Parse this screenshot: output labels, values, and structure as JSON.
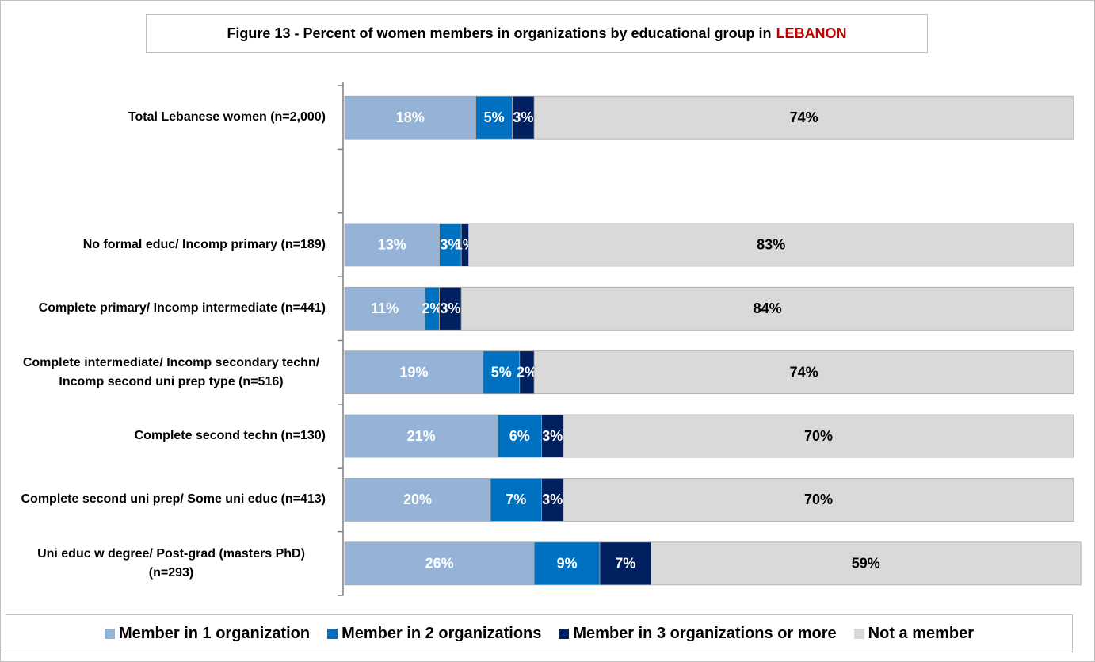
{
  "chart_data": {
    "type": "stacked_bar_horizontal",
    "title": "Figure 13 - Percent of women members in organizations by educational group in",
    "title_highlight": "LEBANON",
    "categories": [
      "Total Lebanese women (n=2,000)",
      null,
      "No formal educ/ Incomp primary (n=189)",
      "Complete primary/ Incomp intermediate (n=441)",
      "Complete intermediate/ Incomp secondary techn/ Incomp second uni prep type (n=516)",
      "Complete second techn (n=130)",
      "Complete second uni prep/ Some uni educ (n=413)",
      "Uni educ w degree/ Post-grad (masters PhD) (n=293)"
    ],
    "xlim": [
      0,
      100
    ],
    "series": [
      {
        "name": "Member in 1 organization",
        "color": "#95b3d7",
        "label_color": "#ffffff",
        "values": [
          18,
          null,
          13,
          11,
          19,
          21,
          20,
          26
        ],
        "value_labels": [
          "18%",
          null,
          "13%",
          "11%",
          "19%",
          "21%",
          "20%",
          "26%"
        ]
      },
      {
        "name": "Member in 2 organizations",
        "color": "#0070c0",
        "label_color": "#ffffff",
        "values": [
          5,
          null,
          3,
          2,
          5,
          6,
          7,
          9
        ],
        "value_labels": [
          "5%",
          null,
          "3%",
          "2%",
          "5%",
          "6%",
          "7%",
          "9%"
        ]
      },
      {
        "name": "Member in 3 organizations or more",
        "color": "#002060",
        "label_color": "#ffffff",
        "values": [
          3,
          null,
          1,
          3,
          2,
          3,
          3,
          7
        ],
        "value_labels": [
          "3%",
          null,
          "1%",
          "3%",
          "2%",
          "3%",
          "3%",
          "7%"
        ]
      },
      {
        "name": "Not a member",
        "color": "#d9d9d9",
        "label_color": "#000000",
        "values": [
          74,
          null,
          83,
          84,
          74,
          70,
          70,
          59
        ],
        "value_labels": [
          "74%",
          null,
          "83%",
          "84%",
          "74%",
          "70%",
          "70%",
          "59%"
        ]
      }
    ]
  }
}
